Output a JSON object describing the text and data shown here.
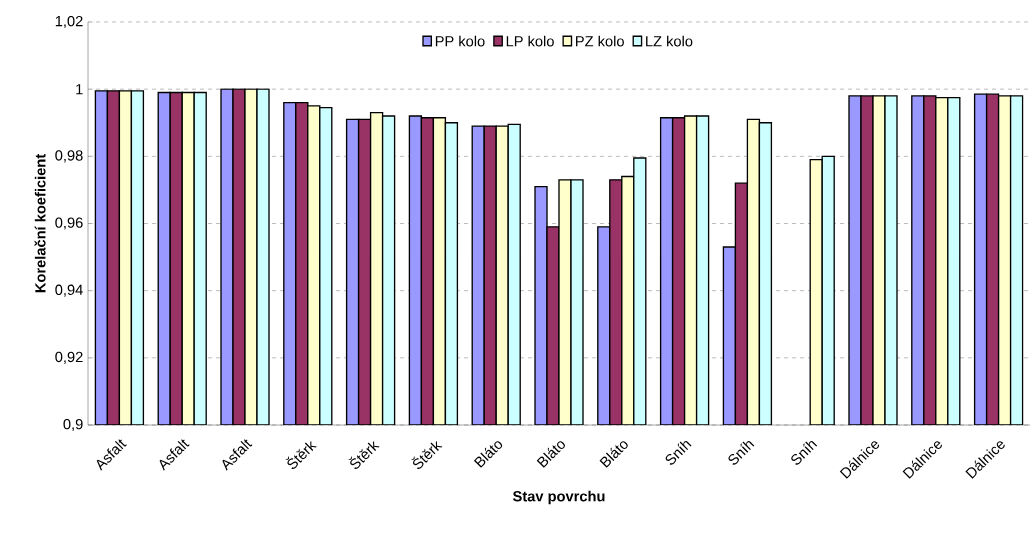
{
  "chart_data": {
    "type": "bar",
    "xlabel": "Stav povrchu",
    "ylabel": "Korelační koeficient",
    "categories": [
      "Asfalt",
      "Asfalt",
      "Asfalt",
      "Štěrk",
      "Štěrk",
      "Štěrk",
      "Bláto",
      "Bláto",
      "Bláto",
      "Sníh",
      "Sníh",
      "Sníh",
      "Dálnice",
      "Dálnice",
      "Dálnice"
    ],
    "series": [
      {
        "name": "PP kolo",
        "color": "#9999ff",
        "values": [
          0.9995,
          0.999,
          1.0,
          0.996,
          0.991,
          0.992,
          0.989,
          0.971,
          0.959,
          0.9915,
          0.953,
          null,
          0.998,
          0.998,
          0.9985
        ]
      },
      {
        "name": "LP kolo",
        "color": "#993366",
        "values": [
          0.9995,
          0.999,
          1.0,
          0.996,
          0.991,
          0.9915,
          0.989,
          0.959,
          0.973,
          0.9915,
          0.972,
          null,
          0.998,
          0.998,
          0.9985
        ]
      },
      {
        "name": "PZ kolo",
        "color": "#ffffcc",
        "values": [
          0.9995,
          0.999,
          1.0,
          0.995,
          0.993,
          0.9915,
          0.989,
          0.973,
          0.974,
          0.992,
          0.991,
          0.979,
          0.998,
          0.9975,
          0.998
        ]
      },
      {
        "name": "LZ kolo",
        "color": "#ccffff",
        "values": [
          0.9995,
          0.999,
          1.0,
          0.9945,
          0.992,
          0.99,
          0.9895,
          0.973,
          0.9795,
          0.992,
          0.99,
          0.98,
          0.998,
          0.9975,
          0.998
        ]
      }
    ],
    "ylim": [
      0.9,
      1.02
    ],
    "yticks": [
      {
        "value": 0.9,
        "label": "0,9"
      },
      {
        "value": 0.92,
        "label": "0,92"
      },
      {
        "value": 0.94,
        "label": "0,94"
      },
      {
        "value": 0.96,
        "label": "0,96"
      },
      {
        "value": 0.98,
        "label": "0,98"
      },
      {
        "value": 1,
        "label": "1"
      },
      {
        "value": 1.02,
        "label": "1,02"
      }
    ],
    "grid": "y",
    "legend": "top"
  }
}
